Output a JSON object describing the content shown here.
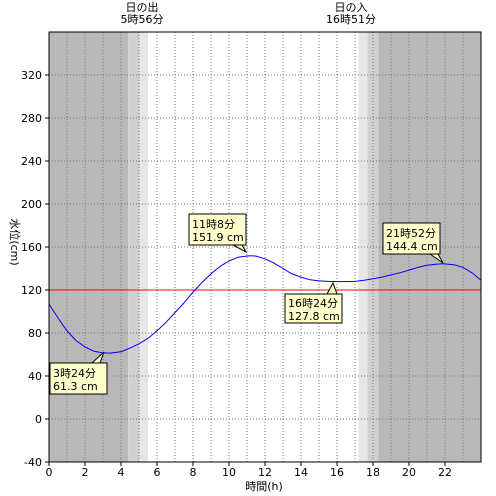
{
  "chart_data": {
    "type": "line",
    "xlabel": "時間(h)",
    "ylabel": "水位(cm)",
    "xlim": [
      0,
      24
    ],
    "ylim": [
      -40,
      360
    ],
    "x_ticks": [
      0,
      2,
      4,
      6,
      8,
      10,
      12,
      14,
      16,
      18,
      20,
      22
    ],
    "y_ticks": [
      -40,
      0,
      40,
      80,
      120,
      160,
      200,
      240,
      280,
      320
    ],
    "grid": "dotted",
    "reference_line": {
      "y": 120,
      "color": "#ff0000"
    },
    "sun": {
      "sunrise": {
        "label": "日の出",
        "time_label": "5時56分",
        "hour": 5.93
      },
      "sunset": {
        "label": "日の入",
        "time_label": "16時51分",
        "hour": 16.85
      },
      "bands": [
        {
          "from": 0,
          "to": 4.4,
          "shade": "#b8b8b8"
        },
        {
          "from": 4.4,
          "to": 5.0,
          "shade": "#d0d0d0"
        },
        {
          "from": 5.0,
          "to": 5.5,
          "shade": "#e6e6e6"
        },
        {
          "from": 17.2,
          "to": 17.7,
          "shade": "#e6e6e6"
        },
        {
          "from": 17.7,
          "to": 18.3,
          "shade": "#d0d0d0"
        },
        {
          "from": 18.3,
          "to": 24,
          "shade": "#b8b8b8"
        }
      ]
    },
    "series": [
      {
        "color": "#0000ff",
        "points": [
          [
            0,
            107
          ],
          [
            0.5,
            94
          ],
          [
            1,
            82
          ],
          [
            1.5,
            73
          ],
          [
            2,
            67
          ],
          [
            2.5,
            63
          ],
          [
            3,
            61.5
          ],
          [
            3.4,
            61.3
          ],
          [
            4,
            62.5
          ],
          [
            4.5,
            66
          ],
          [
            5,
            70
          ],
          [
            5.5,
            75
          ],
          [
            6,
            82
          ],
          [
            6.5,
            90
          ],
          [
            7,
            99
          ],
          [
            7.5,
            108
          ],
          [
            8,
            118
          ],
          [
            8.5,
            127
          ],
          [
            9,
            135
          ],
          [
            9.5,
            142
          ],
          [
            10,
            147
          ],
          [
            10.5,
            150.5
          ],
          [
            11.13,
            151.9
          ],
          [
            11.5,
            151.5
          ],
          [
            12,
            149
          ],
          [
            12.5,
            145
          ],
          [
            13,
            140
          ],
          [
            13.5,
            135
          ],
          [
            14,
            132
          ],
          [
            14.5,
            129.5
          ],
          [
            15,
            128.5
          ],
          [
            15.5,
            128
          ],
          [
            16,
            127.8
          ],
          [
            16.4,
            127.8
          ],
          [
            17,
            128
          ],
          [
            17.5,
            129
          ],
          [
            18,
            130.5
          ],
          [
            18.5,
            132
          ],
          [
            19,
            134
          ],
          [
            19.5,
            136
          ],
          [
            20,
            138.5
          ],
          [
            20.5,
            141
          ],
          [
            21,
            143
          ],
          [
            21.5,
            144
          ],
          [
            21.87,
            144.4
          ],
          [
            22.5,
            143.5
          ],
          [
            23,
            141
          ],
          [
            23.5,
            136
          ],
          [
            24,
            129
          ]
        ]
      }
    ],
    "annotations": [
      {
        "time": "3時24分",
        "value": "61.3 cm"
      },
      {
        "time": "11時8分",
        "value": "151.9 cm"
      },
      {
        "time": "16時24分",
        "value": "127.8 cm"
      },
      {
        "time": "21時52分",
        "value": "144.4 cm"
      }
    ]
  }
}
